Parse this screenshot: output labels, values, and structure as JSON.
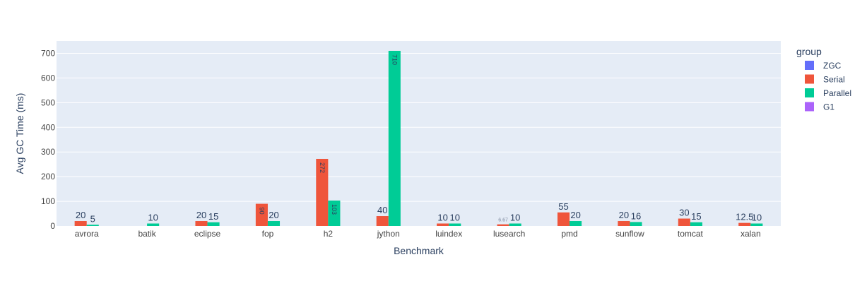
{
  "chart_data": {
    "type": "bar",
    "title": "",
    "xlabel": "Benchmark",
    "ylabel": "Avg GC Time (ms)",
    "ylim": [
      0,
      750
    ],
    "yticks": [
      0,
      100,
      200,
      300,
      400,
      500,
      600,
      700
    ],
    "grid": true,
    "legend": {
      "title": "group",
      "placement": "right"
    },
    "categories": [
      "avrora",
      "batik",
      "eclipse",
      "fop",
      "h2",
      "jython",
      "luindex",
      "lusearch",
      "pmd",
      "sunflow",
      "tomcat",
      "xalan"
    ],
    "series": [
      {
        "name": "ZGC",
        "color": "#636efa",
        "values": [
          null,
          null,
          null,
          null,
          null,
          null,
          null,
          null,
          null,
          null,
          null,
          null
        ]
      },
      {
        "name": "Serial",
        "color": "#ef553b",
        "values": [
          20,
          null,
          20,
          90,
          272,
          40,
          10,
          6.67,
          55,
          20,
          30,
          12.5
        ]
      },
      {
        "name": "Parallel",
        "color": "#00cc96",
        "values": [
          5,
          10,
          15,
          20,
          103,
          710,
          10,
          10,
          20,
          16,
          15,
          10
        ]
      },
      {
        "name": "G1",
        "color": "#ab63fa",
        "values": [
          null,
          null,
          null,
          null,
          null,
          null,
          null,
          null,
          null,
          null,
          null,
          null
        ]
      }
    ]
  },
  "colors": {
    "plot_background": "#e5ecf6",
    "grid": "#ffffff",
    "text": "#2a3f5f",
    "tick_text": "#444444"
  }
}
